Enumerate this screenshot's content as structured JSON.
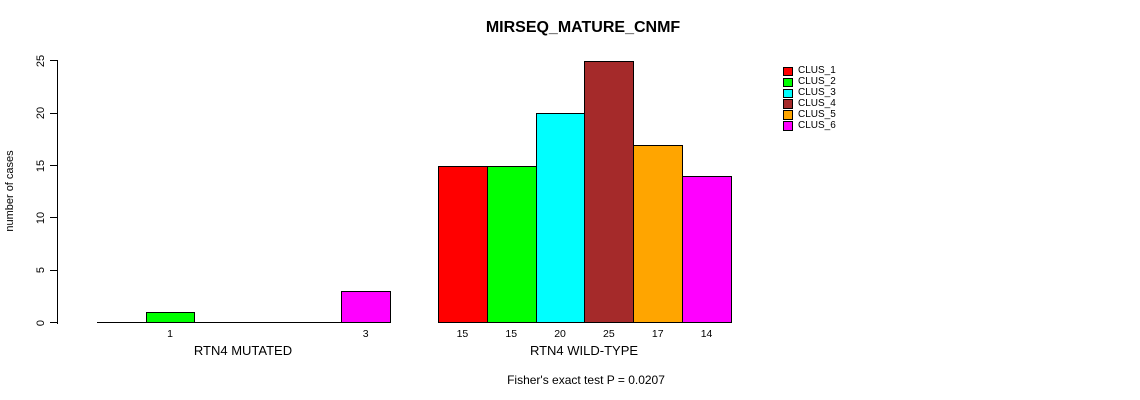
{
  "title": "MIRSEQ_MATURE_CNMF",
  "y_axis": {
    "label": "number of cases"
  },
  "footnote": "Fisher's exact test P = 0.0207",
  "chart_data": {
    "type": "bar",
    "title": "MIRSEQ_MATURE_CNMF",
    "ylabel": "number of cases",
    "xlabel": "",
    "ylim": [
      0,
      25
    ],
    "y_ticks": [
      0,
      5,
      10,
      15,
      20,
      25
    ],
    "grid": false,
    "legend_position": "top-right-inside",
    "series": [
      {
        "name": "CLUS_1",
        "color": "#FF0000"
      },
      {
        "name": "CLUS_2",
        "color": "#00FF00"
      },
      {
        "name": "CLUS_3",
        "color": "#00FFFF"
      },
      {
        "name": "CLUS_4",
        "color": "#A52A2A"
      },
      {
        "name": "CLUS_5",
        "color": "#FFA500"
      },
      {
        "name": "CLUS_6",
        "color": "#FF00FF"
      }
    ],
    "groups": [
      {
        "label": "RTN4 MUTATED",
        "values": [
          0,
          1,
          0,
          0,
          0,
          3
        ]
      },
      {
        "label": "RTN4 WILD-TYPE",
        "values": [
          15,
          15,
          20,
          25,
          17,
          14
        ]
      }
    ],
    "bar_value_labels": [
      [
        "",
        "1",
        "",
        "",
        "",
        "3"
      ],
      [
        "15",
        "15",
        "20",
        "25",
        "17",
        "14"
      ]
    ],
    "annotation": "Fisher's exact test P = 0.0207"
  }
}
